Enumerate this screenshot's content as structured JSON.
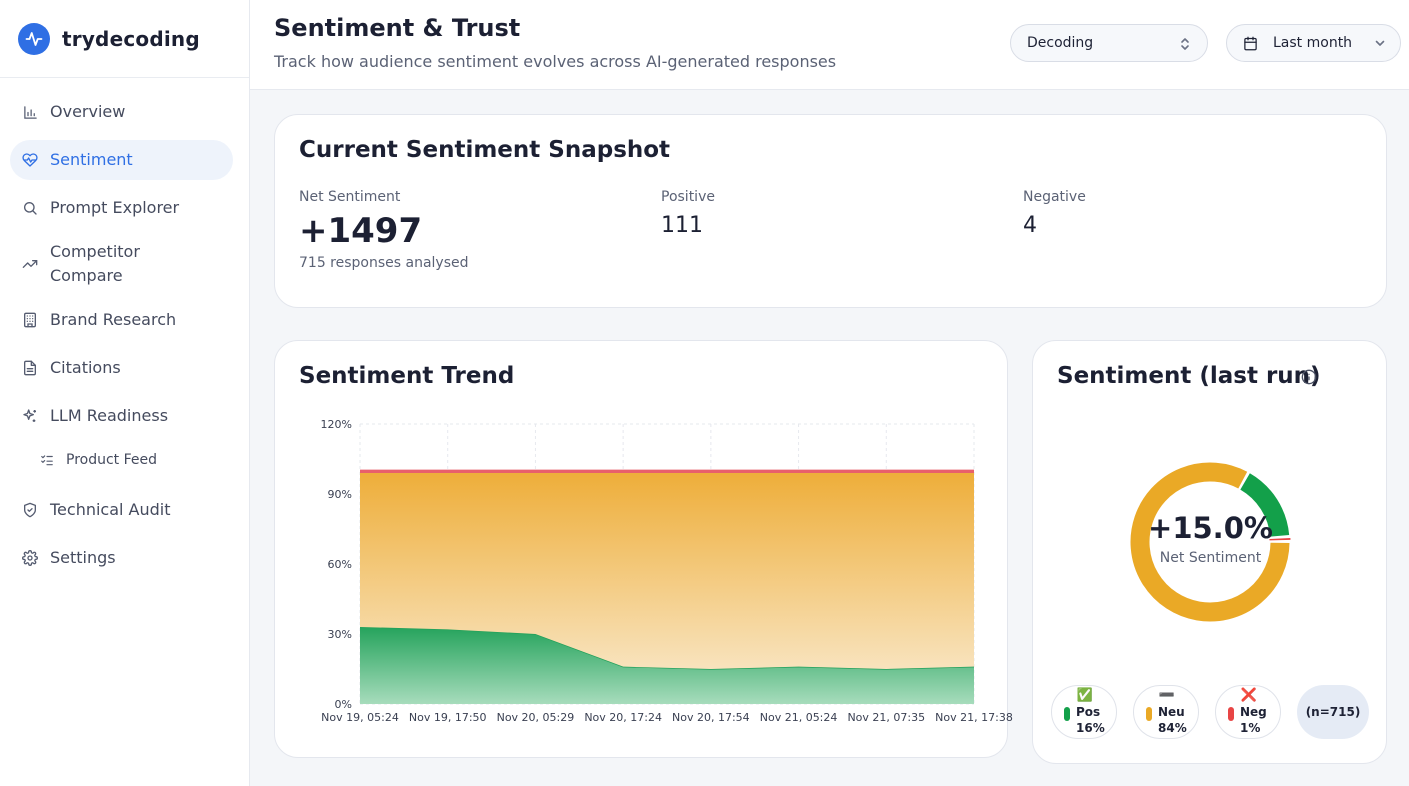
{
  "brand": {
    "name": "trydecoding",
    "logo_icon": "pulse-icon",
    "accent": "#2f6fe4"
  },
  "sidebar": {
    "items": [
      {
        "label": "Overview",
        "icon": "bar-chart-icon"
      },
      {
        "label": "Sentiment",
        "icon": "heart-pulse-icon",
        "active": true
      },
      {
        "label": "Prompt Explorer",
        "icon": "search-icon"
      },
      {
        "label": "Competitor Compare",
        "icon": "trending-up-icon"
      },
      {
        "label": "Brand Research",
        "icon": "building-icon"
      },
      {
        "label": "Citations",
        "icon": "document-icon"
      },
      {
        "label": "LLM Readiness",
        "icon": "sparkles-icon"
      },
      {
        "label": "Product Feed",
        "icon": "list-checks-icon"
      },
      {
        "label": "Technical Audit",
        "icon": "shield-icon"
      },
      {
        "label": "Settings",
        "icon": "gear-icon"
      }
    ]
  },
  "header": {
    "title": "Sentiment & Trust",
    "subtitle": "Track how audience sentiment evolves across AI-generated responses",
    "brand_select": "Decoding",
    "range_select": "Last month"
  },
  "snapshot": {
    "title": "Current Sentiment Snapshot",
    "net_label": "Net Sentiment",
    "net_value": "+1497",
    "responses_note": "715 responses analysed",
    "positive_label": "Positive",
    "positive_value": "111",
    "negative_label": "Negative",
    "negative_value": "4"
  },
  "trend": {
    "title": "Sentiment Trend",
    "colors": {
      "positive": "#22a05a",
      "neutral": "#eeaf3c",
      "negative": "#e8606b"
    }
  },
  "chart_data": {
    "type": "area",
    "title": "Sentiment Trend",
    "stacked": true,
    "x": [
      "Nov 19, 05:24",
      "Nov 19, 17:50",
      "Nov 20, 05:29",
      "Nov 20, 17:24",
      "Nov 20, 17:54",
      "Nov 21, 05:24",
      "Nov 21, 07:35",
      "Nov 21, 17:38"
    ],
    "yticks": [
      "0%",
      "30%",
      "60%",
      "90%",
      "120%"
    ],
    "ylim": [
      0,
      120
    ],
    "series": [
      {
        "name": "Positive",
        "values": [
          33,
          32,
          30,
          16,
          15,
          16,
          15,
          16
        ]
      },
      {
        "name": "Neutral",
        "values": [
          66,
          67,
          69,
          83,
          84,
          83,
          84,
          83
        ]
      },
      {
        "name": "Negative",
        "values": [
          1,
          1,
          1,
          1,
          1,
          1,
          1,
          1
        ]
      }
    ]
  },
  "last_run": {
    "title": "Sentiment (last run)",
    "net_value": "+15.0%",
    "net_label": "Net Sentiment",
    "positive": {
      "emoji": "✅",
      "label": "Pos",
      "pct": "16%",
      "value": 16,
      "color": "#13a04a"
    },
    "neutral": {
      "emoji": "➖",
      "label": "Neu",
      "pct": "84%",
      "value": 84,
      "color": "#eaa926"
    },
    "negative": {
      "emoji": "❌",
      "label": "Neg",
      "pct": "1%",
      "value": 1,
      "color": "#e84545"
    },
    "count": "(n=715)"
  }
}
